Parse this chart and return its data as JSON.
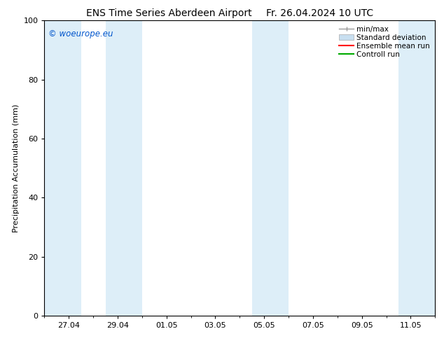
{
  "title_left": "ENS Time Series Aberdeen Airport",
  "title_right": "Fr. 26.04.2024 10 UTC",
  "ylabel": "Precipitation Accumulation (mm)",
  "watermark": "© woeurope.eu",
  "watermark_color": "#0055cc",
  "ylim": [
    0,
    100
  ],
  "yticks": [
    0,
    20,
    40,
    60,
    80,
    100
  ],
  "background_color": "#ffffff",
  "plot_bg_color": "#ffffff",
  "shaded_band_color": "#ddeef8",
  "x_min": 0,
  "x_max": 16,
  "xtick_labels": [
    "27.04",
    "29.04",
    "01.05",
    "03.05",
    "05.05",
    "07.05",
    "09.05",
    "11.05"
  ],
  "xtick_positions": [
    1,
    3,
    5,
    7,
    9,
    11,
    13,
    15
  ],
  "shaded_regions": [
    {
      "x_start": 0,
      "x_end": 1.5
    },
    {
      "x_start": 2.5,
      "x_end": 4.0
    },
    {
      "x_start": 8.5,
      "x_end": 10.0
    },
    {
      "x_start": 14.5,
      "x_end": 16
    }
  ],
  "legend_labels": [
    "min/max",
    "Standard deviation",
    "Ensemble mean run",
    "Controll run"
  ],
  "legend_colors_line": [
    "#aaaaaa",
    "#c8dff0",
    "#ff0000",
    "#00aa00"
  ],
  "title_fontsize": 10,
  "axis_fontsize": 8,
  "tick_fontsize": 8,
  "legend_fontsize": 7.5
}
